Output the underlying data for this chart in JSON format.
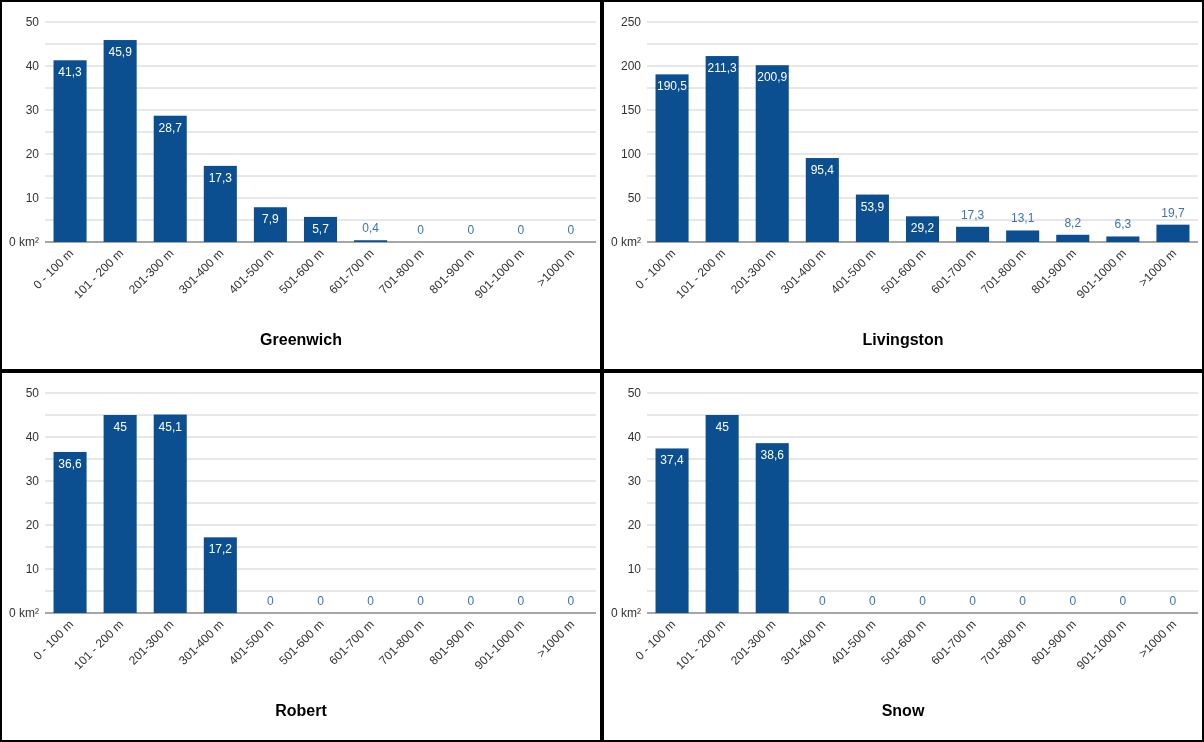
{
  "chart_data": [
    {
      "type": "bar",
      "title": "Greenwich",
      "categories": [
        "0 - 100 m",
        "101 - 200 m",
        "201-300 m",
        "301-400 m",
        "401-500 m",
        "501-600 m",
        "601-700 m",
        "701-800 m",
        "801-900 m",
        "901-1000 m",
        ">1000 m"
      ],
      "values": [
        41.3,
        45.9,
        28.7,
        17.3,
        7.9,
        5.7,
        0.4,
        0,
        0,
        0,
        0
      ],
      "value_labels": [
        "41,3",
        "45,9",
        "28,7",
        "17,3",
        "7,9",
        "5,7",
        "0,4",
        "0",
        "0",
        "0",
        "0"
      ],
      "color": "#0b4f91",
      "ylim": [
        0,
        50
      ],
      "yticks": [
        {
          "value": 0,
          "label": "0 km²"
        },
        {
          "value": 5,
          "label": null
        },
        10,
        {
          "value": 15,
          "label": null
        },
        20,
        {
          "value": 25,
          "label": null
        },
        30,
        {
          "value": 35,
          "label": null
        },
        40,
        {
          "value": 45,
          "label": null
        },
        50
      ],
      "grid": "y"
    },
    {
      "type": "bar",
      "title": "Livingston",
      "categories": [
        "0 - 100 m",
        "101 - 200 m",
        "201-300 m",
        "301-400 m",
        "401-500 m",
        "501-600 m",
        "601-700 m",
        "701-800 m",
        "801-900 m",
        "901-1000 m",
        ">1000 m"
      ],
      "values": [
        190.5,
        211.3,
        200.9,
        95.4,
        53.9,
        29.2,
        17.3,
        13.1,
        8.2,
        6.3,
        19.7
      ],
      "value_labels": [
        "190,5",
        "211,3",
        "200,9",
        "95,4",
        "53,9",
        "29,2",
        "17,3",
        "13,1",
        "8,2",
        "6,3",
        "19,7"
      ],
      "color": "#0b4f91",
      "ylim": [
        0,
        250
      ],
      "yticks": [
        {
          "value": 0,
          "label": "0 km²"
        },
        {
          "value": 25,
          "label": null
        },
        50,
        {
          "value": 75,
          "label": null
        },
        100,
        {
          "value": 125,
          "label": null
        },
        150,
        {
          "value": 175,
          "label": null
        },
        200,
        {
          "value": 225,
          "label": null
        },
        250
      ],
      "grid": "y"
    },
    {
      "type": "bar",
      "title": "Robert",
      "categories": [
        "0 - 100 m",
        "101 - 200 m",
        "201-300 m",
        "301-400 m",
        "401-500 m",
        "501-600 m",
        "601-700 m",
        "701-800 m",
        "801-900 m",
        "901-1000 m",
        ">1000 m"
      ],
      "values": [
        36.6,
        45,
        45.1,
        17.2,
        0,
        0,
        0,
        0,
        0,
        0,
        0
      ],
      "value_labels": [
        "36,6",
        "45",
        "45,1",
        "17,2",
        "0",
        "0",
        "0",
        "0",
        "0",
        "0",
        "0"
      ],
      "color": "#0b4f91",
      "ylim": [
        0,
        50
      ],
      "yticks": [
        {
          "value": 0,
          "label": "0 km²"
        },
        {
          "value": 5,
          "label": null
        },
        10,
        {
          "value": 15,
          "label": null
        },
        20,
        {
          "value": 25,
          "label": null
        },
        30,
        {
          "value": 35,
          "label": null
        },
        40,
        {
          "value": 45,
          "label": null
        },
        50
      ],
      "grid": "y"
    },
    {
      "type": "bar",
      "title": "Snow",
      "categories": [
        "0 - 100 m",
        "101 - 200 m",
        "201-300 m",
        "301-400 m",
        "401-500 m",
        "501-600 m",
        "601-700 m",
        "701-800 m",
        "801-900 m",
        "901-1000 m",
        ">1000 m"
      ],
      "values": [
        37.4,
        45,
        38.6,
        0,
        0,
        0,
        0,
        0,
        0,
        0,
        0
      ],
      "value_labels": [
        "37,4",
        "45",
        "38,6",
        "0",
        "0",
        "0",
        "0",
        "0",
        "0",
        "0",
        "0"
      ],
      "color": "#0b4f91",
      "ylim": [
        0,
        50
      ],
      "yticks": [
        {
          "value": 0,
          "label": "0 km²"
        },
        {
          "value": 5,
          "label": null
        },
        10,
        {
          "value": 15,
          "label": null
        },
        20,
        {
          "value": 25,
          "label": null
        },
        30,
        {
          "value": 35,
          "label": null
        },
        40,
        {
          "value": 45,
          "label": null
        },
        50
      ],
      "grid": "y"
    }
  ]
}
